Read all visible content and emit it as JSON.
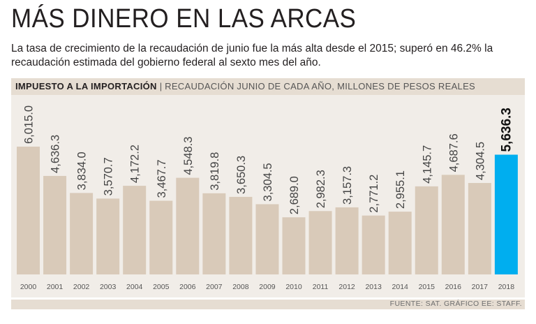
{
  "header": {
    "title": "MÁS DINERO EN LAS ARCAS",
    "subtitle": "La tasa de crecimiento de la recaudación de junio fue la más alta desde el 2015; superó en 46.2% la recaudación estimada del gobierno federal al sexto mes del año."
  },
  "strip": {
    "label": "IMPUESTO A LA IMPORTACIÓN",
    "separator": "|",
    "sublabel": "RECAUDACIÓN JUNIO DE CADA AÑO, MILLONES DE PESOS REALES"
  },
  "footer": {
    "source": "FUENTE: SAT. GRÁFICO EE: STAFF."
  },
  "colors": {
    "bar": "#d9cab9",
    "highlight": "#00aeef",
    "background": "#f1ede8",
    "strip": "#e6ddd2"
  },
  "chart_data": {
    "type": "bar",
    "categories": [
      "2000",
      "2001",
      "2002",
      "2003",
      "2004",
      "2005",
      "2006",
      "2007",
      "2008",
      "2009",
      "2010",
      "2011",
      "2012",
      "2013",
      "2014",
      "2015",
      "2016",
      "2017",
      "2018"
    ],
    "values": [
      6015.0,
      4636.3,
      3834.0,
      3570.7,
      4172.2,
      3467.7,
      4548.3,
      3819.8,
      3650.3,
      3304.5,
      2689.0,
      2982.3,
      3157.3,
      2771.2,
      2955.1,
      4145.7,
      4687.6,
      4304.5,
      5636.3
    ],
    "value_labels": [
      "6,015.0",
      "4,636.3",
      "3,834.0",
      "3,570.7",
      "4,172.2",
      "3,467.7",
      "4,548.3",
      "3,819.8",
      "3,650.3",
      "3,304.5",
      "2,689.0",
      "2,982.3",
      "3,157.3",
      "2,771.2",
      "2,955.1",
      "4,145.7",
      "4,687.6",
      "4,304.5",
      "5,636.3"
    ],
    "highlight_category": "2018",
    "ylim": [
      0,
      6015.0
    ],
    "grid": false,
    "legend": "none"
  }
}
